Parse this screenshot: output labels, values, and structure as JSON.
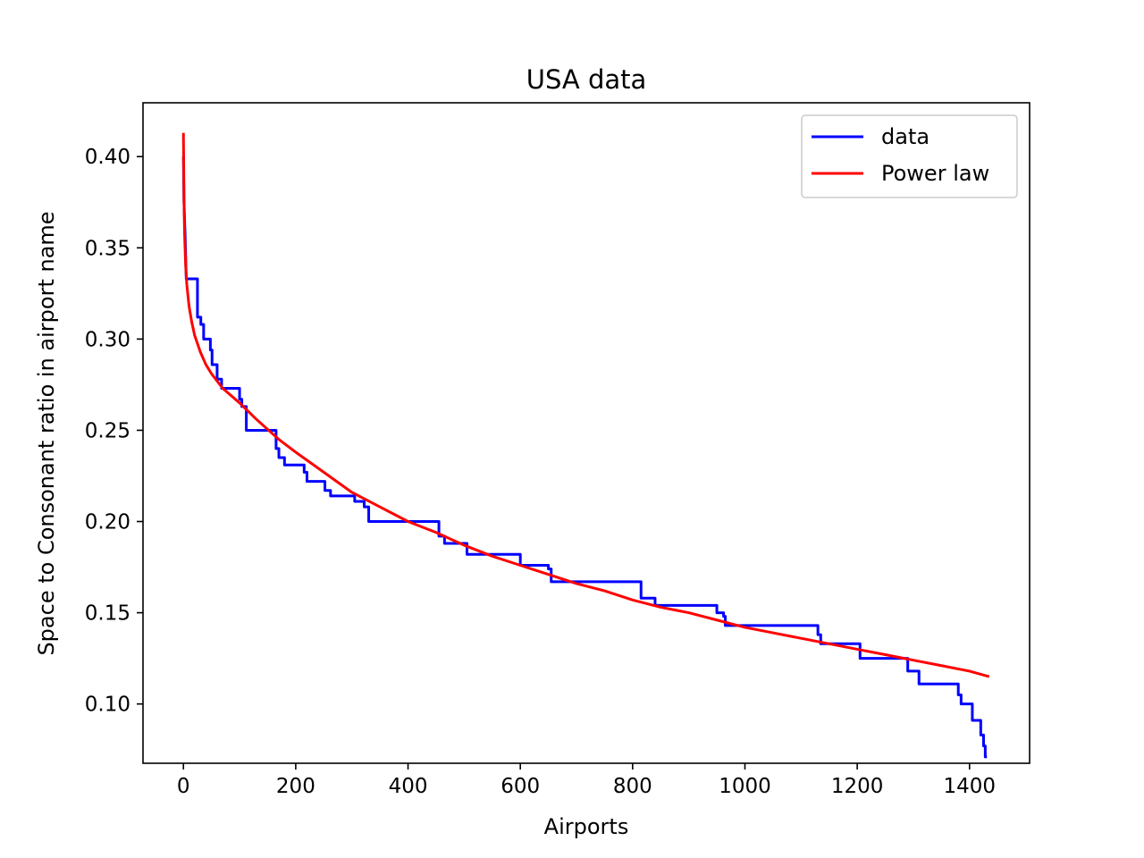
{
  "chart_data": {
    "type": "line",
    "title": "USA data",
    "xlabel": "Airports",
    "ylabel": "Space to Consonant ratio in airport name",
    "xlim": [
      -72,
      1507
    ],
    "ylim": [
      0.0675,
      0.4295
    ],
    "xticks": [
      0,
      200,
      400,
      600,
      800,
      1000,
      1200,
      1400
    ],
    "yticks": [
      0.1,
      0.15,
      0.2,
      0.25,
      0.3,
      0.35,
      0.4
    ],
    "xtick_labels": [
      "0",
      "200",
      "400",
      "600",
      "800",
      "1000",
      "1200",
      "1400"
    ],
    "ytick_labels": [
      "0.10",
      "0.15",
      "0.20",
      "0.25",
      "0.30",
      "0.35",
      "0.40"
    ],
    "grid": false,
    "legend_position": "top-right",
    "series": [
      {
        "name": "data",
        "color": "#0000ff",
        "style": "step",
        "points": [
          [
            0,
            0.4
          ],
          [
            1,
            0.375
          ],
          [
            3,
            0.357
          ],
          [
            5,
            0.333
          ],
          [
            25,
            0.333
          ],
          [
            25,
            0.312
          ],
          [
            31,
            0.312
          ],
          [
            31,
            0.308
          ],
          [
            36,
            0.308
          ],
          [
            36,
            0.3
          ],
          [
            48,
            0.3
          ],
          [
            48,
            0.294
          ],
          [
            51,
            0.294
          ],
          [
            51,
            0.286
          ],
          [
            60,
            0.286
          ],
          [
            60,
            0.278
          ],
          [
            68,
            0.278
          ],
          [
            68,
            0.273
          ],
          [
            100,
            0.273
          ],
          [
            100,
            0.267
          ],
          [
            104,
            0.267
          ],
          [
            104,
            0.263
          ],
          [
            112,
            0.263
          ],
          [
            112,
            0.25
          ],
          [
            165,
            0.25
          ],
          [
            165,
            0.24
          ],
          [
            170,
            0.24
          ],
          [
            170,
            0.235
          ],
          [
            180,
            0.235
          ],
          [
            180,
            0.231
          ],
          [
            215,
            0.231
          ],
          [
            215,
            0.227
          ],
          [
            220,
            0.227
          ],
          [
            220,
            0.222
          ],
          [
            252,
            0.222
          ],
          [
            252,
            0.217
          ],
          [
            262,
            0.217
          ],
          [
            262,
            0.214
          ],
          [
            305,
            0.214
          ],
          [
            305,
            0.211
          ],
          [
            322,
            0.211
          ],
          [
            322,
            0.208
          ],
          [
            330,
            0.208
          ],
          [
            330,
            0.2
          ],
          [
            455,
            0.2
          ],
          [
            455,
            0.192
          ],
          [
            465,
            0.192
          ],
          [
            465,
            0.188
          ],
          [
            505,
            0.188
          ],
          [
            505,
            0.182
          ],
          [
            600,
            0.182
          ],
          [
            600,
            0.176
          ],
          [
            650,
            0.176
          ],
          [
            650,
            0.174
          ],
          [
            655,
            0.174
          ],
          [
            655,
            0.167
          ],
          [
            815,
            0.167
          ],
          [
            815,
            0.158
          ],
          [
            840,
            0.158
          ],
          [
            840,
            0.154
          ],
          [
            950,
            0.154
          ],
          [
            950,
            0.15
          ],
          [
            962,
            0.15
          ],
          [
            962,
            0.148
          ],
          [
            965,
            0.148
          ],
          [
            965,
            0.143
          ],
          [
            1130,
            0.143
          ],
          [
            1130,
            0.138
          ],
          [
            1135,
            0.138
          ],
          [
            1135,
            0.133
          ],
          [
            1205,
            0.133
          ],
          [
            1205,
            0.125
          ],
          [
            1290,
            0.125
          ],
          [
            1290,
            0.118
          ],
          [
            1310,
            0.118
          ],
          [
            1310,
            0.111
          ],
          [
            1380,
            0.111
          ],
          [
            1380,
            0.105
          ],
          [
            1385,
            0.105
          ],
          [
            1385,
            0.1
          ],
          [
            1405,
            0.1
          ],
          [
            1405,
            0.091
          ],
          [
            1420,
            0.091
          ],
          [
            1420,
            0.083
          ],
          [
            1425,
            0.083
          ],
          [
            1425,
            0.077
          ],
          [
            1428,
            0.077
          ],
          [
            1428,
            0.071
          ],
          [
            1431,
            0.071
          ]
        ]
      },
      {
        "name": "Power law",
        "color": "#ff0000",
        "style": "line",
        "points": [
          [
            0,
            0.413
          ],
          [
            1,
            0.377
          ],
          [
            2,
            0.358
          ],
          [
            4,
            0.34
          ],
          [
            6,
            0.33
          ],
          [
            10,
            0.318
          ],
          [
            15,
            0.309
          ],
          [
            20,
            0.302
          ],
          [
            30,
            0.293
          ],
          [
            40,
            0.286
          ],
          [
            50,
            0.281
          ],
          [
            70,
            0.273
          ],
          [
            100,
            0.265
          ],
          [
            130,
            0.256
          ],
          [
            170,
            0.245
          ],
          [
            200,
            0.238
          ],
          [
            250,
            0.227
          ],
          [
            300,
            0.216
          ],
          [
            350,
            0.208
          ],
          [
            400,
            0.2
          ],
          [
            450,
            0.194
          ],
          [
            500,
            0.187
          ],
          [
            550,
            0.181
          ],
          [
            600,
            0.176
          ],
          [
            650,
            0.171
          ],
          [
            700,
            0.166
          ],
          [
            750,
            0.162
          ],
          [
            800,
            0.157
          ],
          [
            850,
            0.153
          ],
          [
            900,
            0.15
          ],
          [
            950,
            0.146
          ],
          [
            1000,
            0.142
          ],
          [
            1050,
            0.139
          ],
          [
            1100,
            0.136
          ],
          [
            1150,
            0.133
          ],
          [
            1200,
            0.13
          ],
          [
            1250,
            0.127
          ],
          [
            1300,
            0.124
          ],
          [
            1350,
            0.121
          ],
          [
            1400,
            0.118
          ],
          [
            1435,
            0.115
          ]
        ]
      }
    ]
  }
}
